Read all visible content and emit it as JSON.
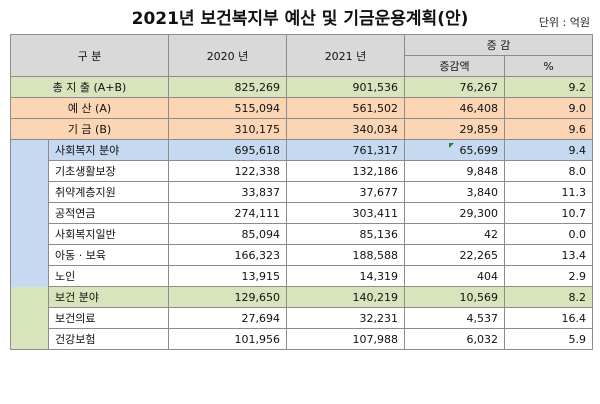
{
  "title": "2021년 보건복지부 예산 및 기금운용계획(안)",
  "unit": "단위 : 억원",
  "header": {
    "category": "구   분",
    "year2020": "2020 년",
    "year2021": "2021 년",
    "change": "증  감",
    "change_amount": "증감액",
    "change_pct": "%"
  },
  "rows": {
    "total": {
      "label": "총 지 출  (A+B)",
      "y2020": "825,269",
      "y2021": "901,536",
      "diff": "76,267",
      "pct": "9.2"
    },
    "budget": {
      "label": "예 산    (A)",
      "y2020": "515,094",
      "y2021": "561,502",
      "diff": "46,408",
      "pct": "9.0"
    },
    "fund": {
      "label": "기 금    (B)",
      "y2020": "310,175",
      "y2021": "340,034",
      "diff": "29,859",
      "pct": "9.6"
    },
    "welfare": {
      "label": "사회복지 분야",
      "y2020": "695,618",
      "y2021": "761,317",
      "diff": "65,699",
      "pct": "9.4"
    },
    "w1": {
      "label": "기초생활보장",
      "y2020": "122,338",
      "y2021": "132,186",
      "diff": "9,848",
      "pct": "8.0"
    },
    "w2": {
      "label": "취약계층지원",
      "y2020": "33,837",
      "y2021": "37,677",
      "diff": "3,840",
      "pct": "11.3"
    },
    "w3": {
      "label": "공적연금",
      "y2020": "274,111",
      "y2021": "303,411",
      "diff": "29,300",
      "pct": "10.7"
    },
    "w4": {
      "label": "사회복지일반",
      "y2020": "85,094",
      "y2021": "85,136",
      "diff": "42",
      "pct": "0.0"
    },
    "w5": {
      "label": "아동 · 보육",
      "y2020": "166,323",
      "y2021": "188,588",
      "diff": "22,265",
      "pct": "13.4"
    },
    "w6": {
      "label": "노인",
      "y2020": "13,915",
      "y2021": "14,319",
      "diff": "404",
      "pct": "2.9"
    },
    "health": {
      "label": "보건 분야",
      "y2020": "129,650",
      "y2021": "140,219",
      "diff": "10,569",
      "pct": "8.2"
    },
    "h1": {
      "label": "보건의료",
      "y2020": "27,694",
      "y2021": "32,231",
      "diff": "4,537",
      "pct": "16.4"
    },
    "h2": {
      "label": "건강보험",
      "y2020": "101,956",
      "y2021": "107,988",
      "diff": "6,032",
      "pct": "5.9"
    }
  },
  "colors": {
    "header": "#d9d9d9",
    "total": "#d8e4bc",
    "budget_fund": "#fcd5b4",
    "welfare": "#c5d9f1",
    "health": "#d8e4bc"
  }
}
